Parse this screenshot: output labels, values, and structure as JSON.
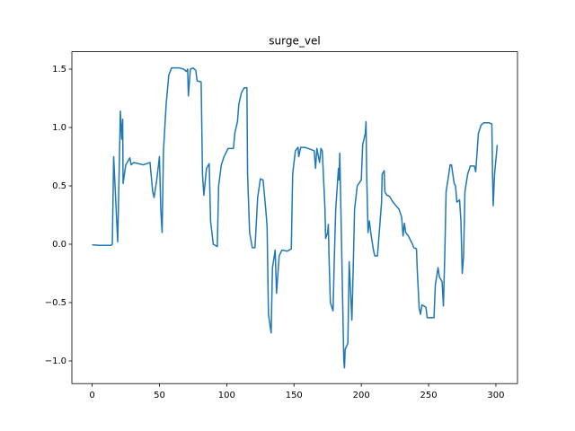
{
  "chart_data": {
    "type": "line",
    "title": "surge_vel",
    "x": [
      0,
      5,
      10,
      14,
      15,
      16,
      19,
      21,
      22,
      22.7,
      23,
      25,
      28,
      29,
      31,
      38,
      43,
      45,
      46,
      48,
      50,
      51,
      52,
      53,
      55,
      57,
      59,
      65,
      68,
      70,
      71,
      71.5,
      73,
      75,
      77,
      78,
      81,
      82,
      83,
      85,
      87,
      88,
      90,
      93,
      94,
      96,
      98,
      101,
      105,
      106,
      108,
      109,
      111,
      113,
      115,
      115.5,
      117,
      119,
      121,
      123,
      125,
      127,
      129,
      130,
      131,
      133,
      134,
      136,
      137,
      139,
      141,
      145,
      148,
      149,
      151,
      153,
      153.5,
      155,
      158,
      163,
      165,
      166,
      167,
      169,
      170,
      171,
      173,
      173.5,
      175,
      175.5,
      176,
      177,
      179,
      180,
      181,
      183,
      183.5,
      184,
      185,
      187,
      187.5,
      188,
      190,
      191,
      193,
      194,
      195,
      197,
      200,
      201,
      203,
      203.5,
      204,
      205,
      206,
      207,
      209,
      210,
      212,
      215,
      215.5,
      217,
      217.5,
      219,
      221,
      223,
      225,
      228,
      230,
      231,
      232,
      233,
      235,
      238,
      239,
      241,
      241.5,
      243,
      244,
      245,
      248,
      249,
      254,
      255,
      257,
      258,
      260,
      261,
      262,
      263,
      265,
      266,
      267,
      269,
      270,
      271,
      273,
      274,
      275,
      276,
      277,
      279,
      281,
      284,
      285,
      287,
      289,
      291,
      295,
      297,
      297.5,
      298,
      299,
      301
    ],
    "series": [
      {
        "color": "#1f77b4",
        "values": [
          -0.005,
          -0.01,
          -0.01,
          -0.01,
          0.0,
          0.75,
          0.02,
          1.14,
          0.9,
          1.07,
          0.52,
          0.68,
          0.74,
          0.68,
          0.7,
          0.68,
          0.7,
          0.45,
          0.4,
          0.55,
          0.75,
          0.3,
          0.1,
          0.8,
          1.2,
          1.45,
          1.51,
          1.51,
          1.5,
          1.48,
          1.5,
          1.27,
          1.5,
          1.51,
          1.49,
          1.4,
          1.39,
          0.6,
          0.42,
          0.65,
          0.69,
          0.2,
          0.0,
          -0.02,
          0.5,
          0.68,
          0.75,
          0.82,
          0.82,
          0.95,
          1.05,
          1.2,
          1.3,
          1.34,
          1.34,
          0.6,
          0.1,
          -0.03,
          -0.03,
          0.4,
          0.56,
          0.55,
          0.3,
          0.15,
          -0.6,
          -0.76,
          -0.2,
          -0.05,
          -0.42,
          -0.1,
          -0.05,
          -0.06,
          -0.04,
          0.6,
          0.8,
          0.83,
          0.75,
          0.83,
          0.83,
          0.81,
          0.8,
          0.65,
          0.82,
          0.7,
          0.82,
          0.8,
          0.3,
          0.05,
          0.1,
          0.17,
          -0.1,
          -0.5,
          -0.57,
          -0.1,
          0.3,
          0.65,
          0.55,
          0.78,
          0.2,
          -1.0,
          -1.06,
          -0.9,
          -0.85,
          -0.15,
          -0.65,
          -0.2,
          0.3,
          0.5,
          0.55,
          0.85,
          0.95,
          1.05,
          0.6,
          0.1,
          0.2,
          0.1,
          -0.05,
          -0.1,
          -0.1,
          0.35,
          0.6,
          0.63,
          0.45,
          0.42,
          0.41,
          0.37,
          0.34,
          0.3,
          0.23,
          0.07,
          0.18,
          0.1,
          0.07,
          0.0,
          -0.03,
          -0.04,
          -0.2,
          -0.55,
          -0.6,
          -0.52,
          -0.54,
          -0.63,
          -0.63,
          -0.35,
          -0.2,
          -0.28,
          -0.32,
          -0.53,
          -0.1,
          0.45,
          0.6,
          0.68,
          0.68,
          0.52,
          0.5,
          0.36,
          0.38,
          0.2,
          -0.25,
          -0.1,
          0.45,
          0.6,
          0.67,
          0.67,
          0.62,
          0.95,
          1.02,
          1.04,
          1.04,
          1.03,
          0.6,
          0.33,
          0.6,
          0.85
        ]
      }
    ],
    "xlim": [
      -15.05,
      316.05
    ],
    "ylim": [
      -1.194,
      1.649
    ],
    "xticks": [
      0,
      50,
      100,
      150,
      200,
      250,
      300
    ],
    "yticks": [
      {
        "value": -1,
        "label": "−1.0"
      },
      {
        "value": -0.5,
        "label": "−0.5"
      },
      {
        "value": 0,
        "label": "0.0"
      },
      {
        "value": 0.5,
        "label": "0.5"
      },
      {
        "value": 1,
        "label": "1.0"
      },
      1.5
    ]
  }
}
